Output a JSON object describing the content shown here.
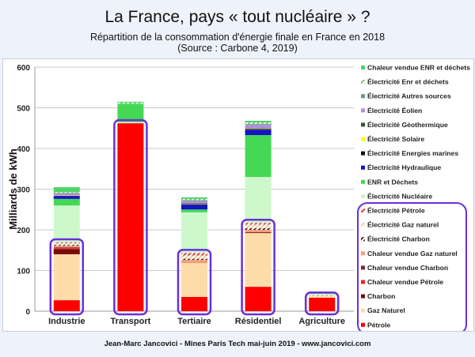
{
  "title": "La France, pays « tout nucléaire » ?",
  "subtitle_line1": "Répartition de la consommation d'énergie finale en France en 2018",
  "subtitle_line2": "(Source : Carbone 4, 2019)",
  "footer": "Jean-Marc Jancovici - Mines Paris Tech mai-juin 2019 - www.jancovici.com",
  "chart_data": {
    "type": "bar",
    "stacked": true,
    "ylabel": "Milliards de kWh",
    "ylim": [
      0,
      600
    ],
    "yticks": [
      0,
      100,
      200,
      300,
      400,
      500,
      600
    ],
    "grid": true,
    "legend_position": "right",
    "categories": [
      "Industrie",
      "Transport",
      "Tertiaire",
      "Résidentiel",
      "Agriculture"
    ],
    "highlight_color": "#6a2fd8",
    "highlighted_series": [
      "Pétrole",
      "Gaz Naturel",
      "Charbon",
      "Chaleur vendue Pétrole",
      "Chaleur vendue Charbon",
      "Chaleur vendue Gaz naturel",
      "Électricité Charbon",
      "Électricité Gaz naturel",
      "Électricité Pétrole"
    ],
    "series": [
      {
        "name": "Pétrole",
        "color": "#ff0000",
        "values": [
          27,
          462,
          35,
          60,
          33
        ]
      },
      {
        "name": "Gaz Naturel",
        "color": "#fddcaa",
        "values": [
          113,
          0,
          83,
          132,
          3
        ]
      },
      {
        "name": "Charbon",
        "color": "#7a0a0a",
        "values": [
          13,
          0,
          0,
          2,
          0
        ]
      },
      {
        "name": "Chaleur vendue Pétrole",
        "color": "#ee2222",
        "values": [
          2,
          0,
          0,
          0,
          0
        ]
      },
      {
        "name": "Chaleur vendue Charbon",
        "color": "#7a2a3a",
        "values": [
          2,
          0,
          0,
          0,
          0
        ]
      },
      {
        "name": "Chaleur vendue Gaz naturel",
        "color": "#f0a07a",
        "values": [
          4,
          0,
          8,
          6,
          0
        ]
      },
      {
        "name": "Électricité Charbon",
        "color": "#5a1a2a",
        "hatched": true,
        "values": [
          2,
          0,
          3,
          4,
          0
        ]
      },
      {
        "name": "Électricité Gaz naturel",
        "color": "#e8d0a0",
        "hatched": true,
        "values": [
          4,
          0,
          8,
          9,
          1
        ]
      },
      {
        "name": "Électricité Pétrole",
        "color": "#dd3333",
        "hatched": true,
        "values": [
          2,
          0,
          6,
          4,
          1
        ]
      },
      {
        "name": "Électricité Nucléaire",
        "color": "#ccf8cc",
        "values": [
          91,
          3,
          100,
          113,
          5
        ]
      },
      {
        "name": "ENR et Déchets",
        "color": "#44d855",
        "values": [
          16,
          45,
          7,
          103,
          3
        ]
      },
      {
        "name": "Électricité Hydraulique",
        "color": "#1515c8",
        "values": [
          7,
          0,
          12,
          13,
          0
        ]
      },
      {
        "name": "Électricité Energies marines",
        "color": "#111111",
        "values": [
          1,
          0,
          1,
          2,
          0
        ]
      },
      {
        "name": "Électricité Solaire",
        "color": "#ffff00",
        "values": [
          1,
          0,
          1,
          1,
          0
        ]
      },
      {
        "name": "Électricité Géothermique",
        "color": "#2d5a3a",
        "values": [
          0,
          0,
          1,
          1,
          0
        ]
      },
      {
        "name": "Électricité Éolien",
        "color": "#b08fe0",
        "values": [
          5,
          0,
          6,
          8,
          0
        ]
      },
      {
        "name": "Électricité Autres sources",
        "color": "#6c9a7e",
        "values": [
          1,
          0,
          2,
          2,
          0
        ]
      },
      {
        "name": "Électricité Enr et déchets",
        "color": "#66cc66",
        "hatched": true,
        "values": [
          2,
          3,
          3,
          4,
          0
        ]
      },
      {
        "name": "Chaleur vendue ENR et déchets",
        "color": "#4fd36a",
        "values": [
          12,
          2,
          4,
          4,
          0
        ]
      }
    ]
  }
}
